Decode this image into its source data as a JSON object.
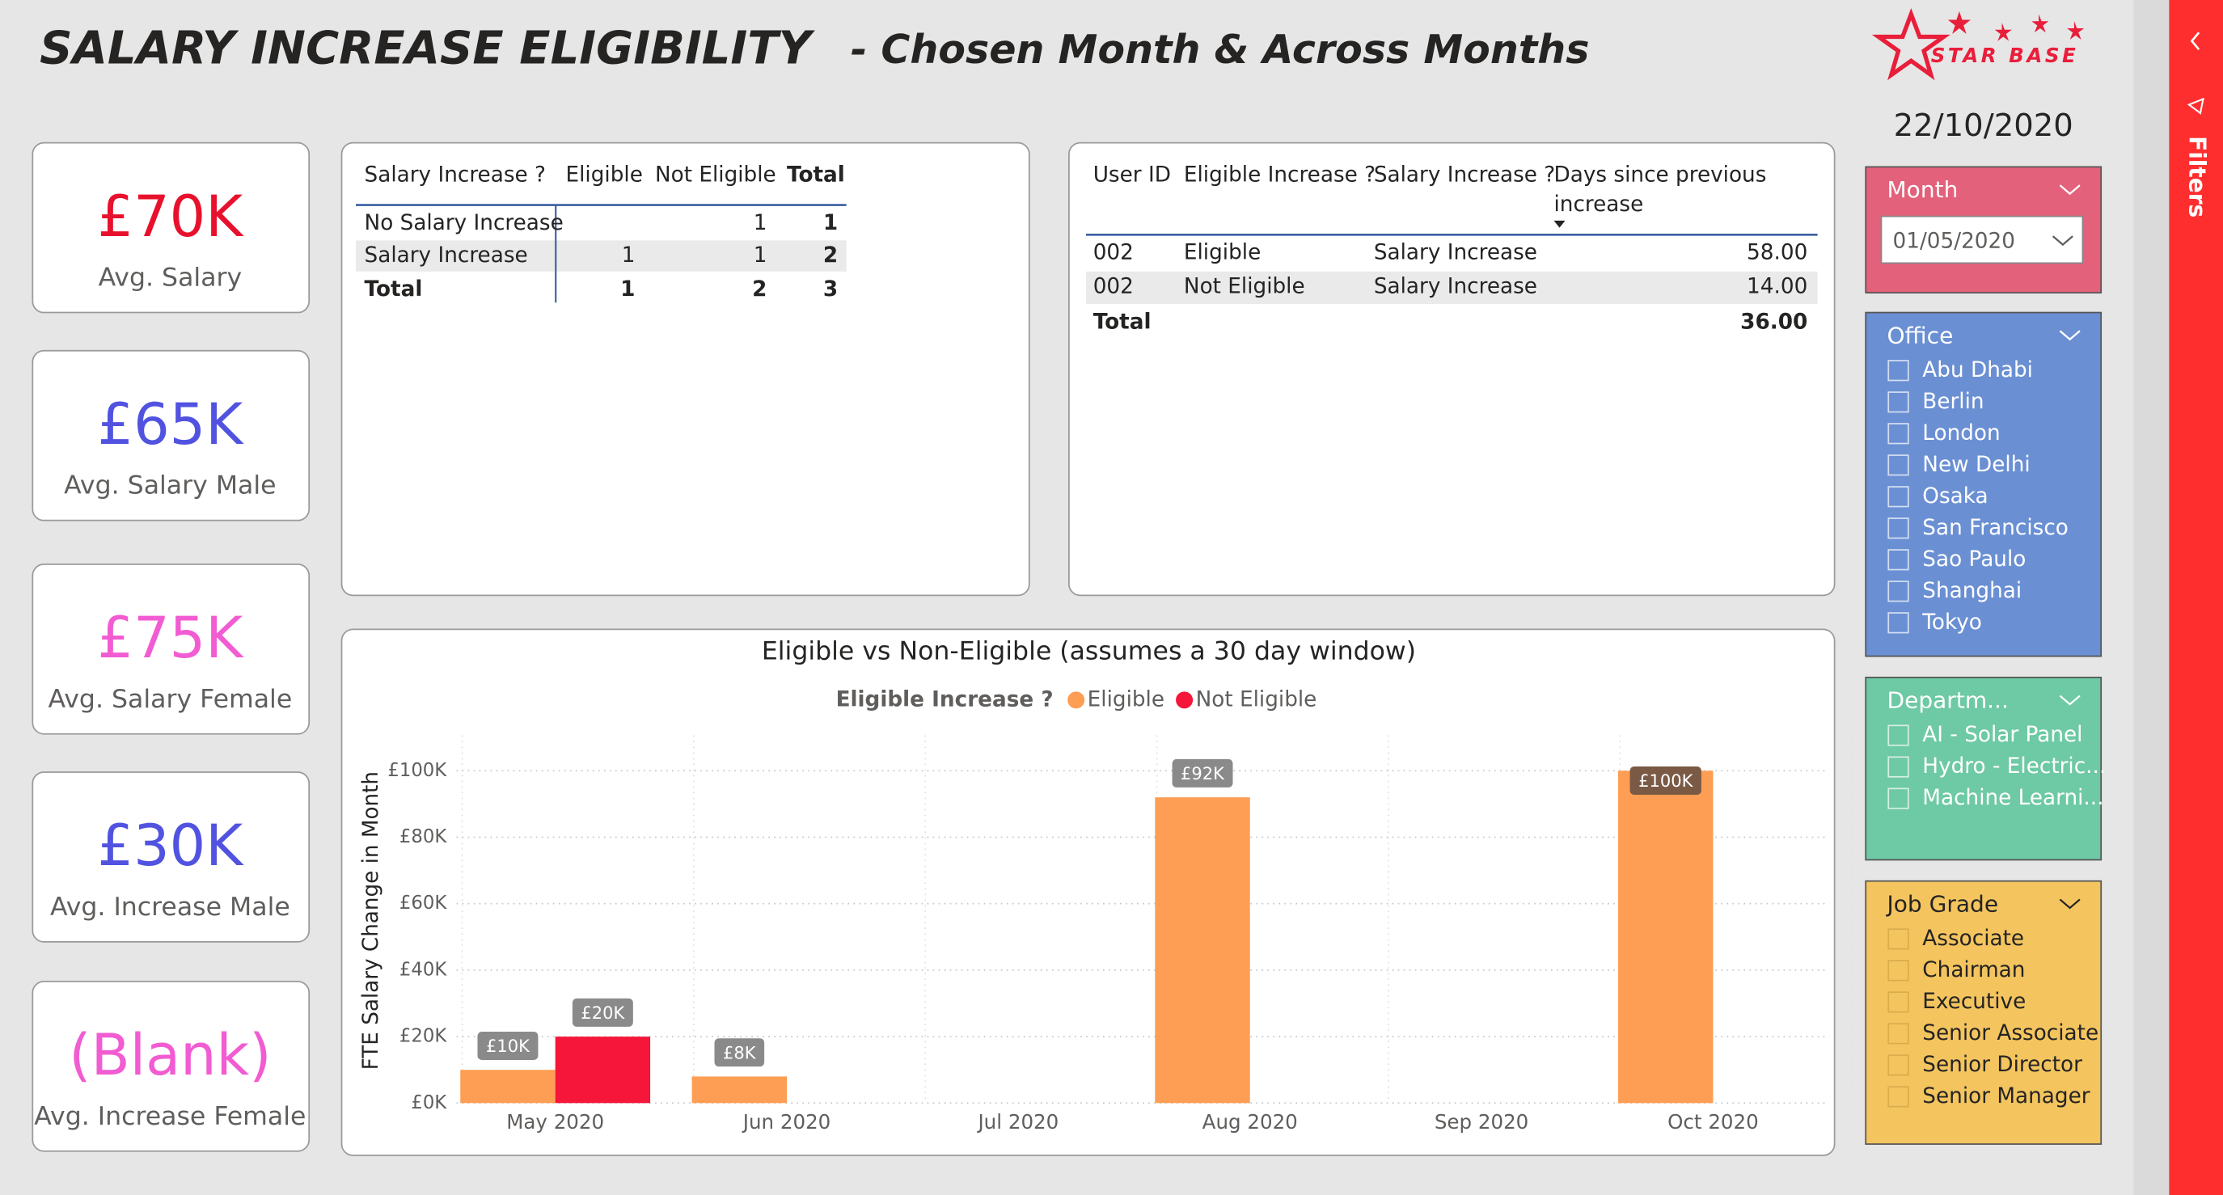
{
  "header": {
    "title": "SALARY INCREASE ELIGIBILITY",
    "subtitle": "- Chosen Month & Across Months",
    "logo": "STAR BASE",
    "date": "22/10/2020"
  },
  "kpis": [
    {
      "value": "£70K",
      "label": "Avg. Salary",
      "color": "#e8112d"
    },
    {
      "value": "£65K",
      "label": "Avg. Salary Male",
      "color": "#5153e0"
    },
    {
      "value": "£75K",
      "label": "Avg. Salary Female",
      "color": "#f25cd2"
    },
    {
      "value": "£30K",
      "label": "Avg. Increase Male",
      "color": "#5153e0"
    },
    {
      "value": "(Blank)",
      "label": "Avg. Increase Female",
      "color": "#f25cd2"
    }
  ],
  "matrix": {
    "columns": [
      "Salary Increase ?",
      "Eligible",
      "Not Eligible",
      "Total"
    ],
    "rows": [
      [
        "No Salary Increase",
        null,
        1,
        1
      ],
      [
        "Salary Increase",
        1,
        1,
        2
      ],
      [
        "Total",
        1,
        2,
        3
      ]
    ]
  },
  "detail": {
    "columns": [
      "User ID",
      "Eligible Increase ?",
      "Salary Increase ?",
      "Days since previous",
      "increase"
    ],
    "rows": [
      [
        "002",
        "Eligible",
        "Salary Increase",
        "58.00"
      ],
      [
        "002",
        "Not Eligible",
        "Salary Increase",
        "14.00"
      ]
    ],
    "total": [
      "Total",
      "36.00"
    ]
  },
  "chart_data": {
    "type": "bar",
    "title": "Eligible vs Non-Eligible (assumes a 30 day window)",
    "legend_title": "Eligible Increase ?",
    "y_label": "FTE Salary Change in Month",
    "categories": [
      "May 2020",
      "Jun 2020",
      "Jul 2020",
      "Aug 2020",
      "Sep 2020",
      "Oct 2020"
    ],
    "series": [
      {
        "name": "Eligible",
        "color": "#fd9e54",
        "values": [
          10000,
          8000,
          null,
          92000,
          null,
          100000
        ],
        "value_labels": [
          "£10K",
          "£8K",
          null,
          "£92K",
          null,
          "£100K"
        ]
      },
      {
        "name": "Not Eligible",
        "color": "#f5163a",
        "values": [
          20000,
          null,
          null,
          null,
          null,
          null
        ],
        "value_labels": [
          "£20K",
          null,
          null,
          null,
          null,
          null
        ]
      }
    ],
    "ylim": [
      0,
      100000
    ],
    "yticks": [
      {
        "value": 0,
        "label": "£0K"
      },
      {
        "value": 20000,
        "label": "£20K"
      },
      {
        "value": 40000,
        "label": "£40K"
      },
      {
        "value": 60000,
        "label": "£60K"
      },
      {
        "value": 80000,
        "label": "£80K"
      },
      {
        "value": 100000,
        "label": "£100K"
      }
    ],
    "grid": true
  },
  "slicers": [
    {
      "title": "Month",
      "selected": "01/05/2020",
      "color": "#e3617a"
    },
    {
      "title": "Office",
      "items": [
        "Abu Dhabi",
        "Berlin",
        "London",
        "New Delhi",
        "Osaka",
        "San Francisco",
        "Sao Paulo",
        "Shanghai",
        "Tokyo"
      ],
      "color": "#6a8fd3"
    },
    {
      "title": "Departm...",
      "items": [
        "AI - Solar Panel",
        "Hydro - Electric...",
        "Machine Learni..."
      ],
      "color": "#6ec9a5"
    },
    {
      "title": "Job Grade",
      "items": [
        "Associate",
        "Chairman",
        "Executive",
        "Senior Associate",
        "Senior Director",
        "Senior Manager"
      ],
      "color": "#f4c55f"
    }
  ],
  "filters_pane": "Filters"
}
